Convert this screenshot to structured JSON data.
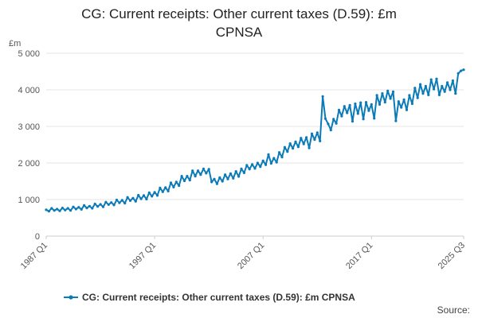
{
  "chart_data": {
    "type": "line",
    "title_lines": [
      "CG: Current receipts: Other current taxes (D.59): £m",
      "CPNSA"
    ],
    "y_unit_label": "£m",
    "ylim": [
      0,
      5000
    ],
    "y_ticks": [
      0,
      1000,
      2000,
      3000,
      4000,
      5000
    ],
    "y_tick_labels": [
      "0",
      "1 000",
      "2 000",
      "3 000",
      "4 000",
      "5 000"
    ],
    "x_tick_labels": [
      "1987 Q1",
      "1997 Q1",
      "2007 Q1",
      "2017 Q1",
      "2025 Q3"
    ],
    "x_tick_positions": [
      0,
      40,
      80,
      120,
      154
    ],
    "series": [
      {
        "name": "CG: Current receipts: Other current taxes (D.59): £m CPNSA",
        "color": "#0b7bb8",
        "start": "1987 Q1",
        "frequency": "quarterly",
        "values": [
          720,
          680,
          760,
          700,
          740,
          690,
          770,
          710,
          760,
          700,
          800,
          740,
          790,
          730,
          840,
          770,
          820,
          760,
          880,
          810,
          870,
          800,
          930,
          860,
          920,
          850,
          990,
          910,
          980,
          900,
          1060,
          970,
          1040,
          950,
          1120,
          1020,
          1110,
          1010,
          1190,
          1090,
          1200,
          1110,
          1320,
          1210,
          1330,
          1230,
          1460,
          1340,
          1480,
          1380,
          1640,
          1510,
          1640,
          1530,
          1790,
          1640,
          1790,
          1680,
          1840,
          1720,
          1830,
          1480,
          1560,
          1430,
          1600,
          1500,
          1680,
          1560,
          1710,
          1580,
          1770,
          1630,
          1840,
          1730,
          1940,
          1830,
          1960,
          1850,
          2000,
          1900,
          2060,
          1950,
          2230,
          1990,
          2130,
          2020,
          2290,
          2160,
          2430,
          2310,
          2530,
          2400,
          2580,
          2440,
          2680,
          2520,
          2700,
          2410,
          2800,
          2640,
          2830,
          2600,
          3820,
          3210,
          3070,
          2900,
          3200,
          3080,
          3450,
          3280,
          3550,
          3370,
          3580,
          3140,
          3620,
          3350,
          3650,
          3200,
          3660,
          3430,
          3600,
          3220,
          3850,
          3600,
          3900,
          3660,
          3970,
          3760,
          3950,
          3150,
          3680,
          3520,
          3730,
          3450,
          3850,
          3620,
          4050,
          3780,
          4150,
          3900,
          4100,
          3860,
          4280,
          4020,
          4300,
          3860,
          4100,
          3950,
          4200,
          4000,
          4250,
          3900,
          4450,
          4520,
          4550
        ]
      }
    ],
    "legend_position": "bottom",
    "source_label": "Source:"
  }
}
